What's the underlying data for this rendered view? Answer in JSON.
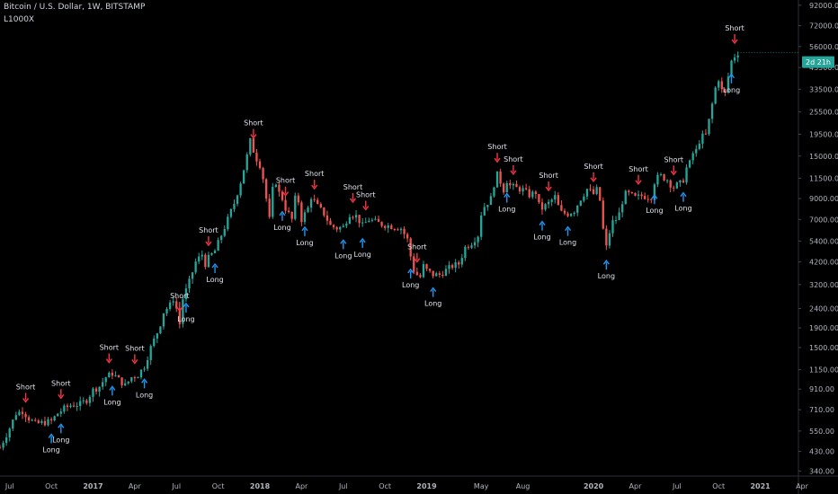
{
  "header": {
    "symbol": "Bitcoin / U.S. Dollar, 1W, BITSTAMP",
    "indicator": "L1000X"
  },
  "price_badge": {
    "label": "2d 21h",
    "color": "#26a69a"
  },
  "colors": {
    "up": "#26a69a",
    "down": "#ef5350",
    "long_arrow": "#2196f3",
    "short_arrow": "#f23645"
  },
  "chart_data": {
    "type": "candlestick",
    "title": "Bitcoin / U.S. Dollar, 1W, BITSTAMP",
    "y_scale": "log",
    "ylim": [
      320,
      98000
    ],
    "y_ticks": [
      "92000.00",
      "72000.00",
      "56000.00",
      "43500.00",
      "33500.00",
      "25500.00",
      "19500.00",
      "15000.00",
      "11500.00",
      "9000.00",
      "7000.00",
      "5400.00",
      "4200.00",
      "3200.00",
      "2400.00",
      "1900.00",
      "1500.00",
      "1150.00",
      "910.00",
      "710.00",
      "550.00",
      "430.00",
      "340.00"
    ],
    "x_ticks": [
      {
        "t": 0,
        "label": "Jul"
      },
      {
        "t": 13,
        "label": "Oct"
      },
      {
        "t": 26,
        "label": "2017"
      },
      {
        "t": 39,
        "label": "Apr"
      },
      {
        "t": 52,
        "label": "Jul"
      },
      {
        "t": 65,
        "label": "Oct"
      },
      {
        "t": 78,
        "label": "2018"
      },
      {
        "t": 91,
        "label": "Apr"
      },
      {
        "t": 104,
        "label": "Jul"
      },
      {
        "t": 117,
        "label": "Oct"
      },
      {
        "t": 130,
        "label": "2019"
      },
      {
        "t": 147,
        "label": "May"
      },
      {
        "t": 160,
        "label": "Aug"
      },
      {
        "t": 182,
        "label": "2020"
      },
      {
        "t": 195,
        "label": "Apr"
      },
      {
        "t": 208,
        "label": "Jul"
      },
      {
        "t": 221,
        "label": "Oct"
      },
      {
        "t": 234,
        "label": "2021"
      },
      {
        "t": 247,
        "label": "Apr"
      }
    ],
    "anchors": [
      [
        -3,
        450
      ],
      [
        0,
        570
      ],
      [
        2,
        680
      ],
      [
        4,
        700
      ],
      [
        6,
        640
      ],
      [
        8,
        600
      ],
      [
        11,
        610
      ],
      [
        13,
        620
      ],
      [
        15,
        680
      ],
      [
        17,
        720
      ],
      [
        19,
        750
      ],
      [
        22,
        760
      ],
      [
        24,
        800
      ],
      [
        26,
        900
      ],
      [
        28,
        940
      ],
      [
        30,
        1050
      ],
      [
        32,
        1100
      ],
      [
        34,
        1020
      ],
      [
        36,
        950
      ],
      [
        38,
        1050
      ],
      [
        40,
        1080
      ],
      [
        42,
        1200
      ],
      [
        44,
        1500
      ],
      [
        46,
        1800
      ],
      [
        47,
        2000
      ],
      [
        48,
        2300
      ],
      [
        50,
        2500
      ],
      [
        51,
        2700
      ],
      [
        52,
        2400
      ],
      [
        53,
        2000
      ],
      [
        54,
        2700
      ],
      [
        56,
        3300
      ],
      [
        58,
        4200
      ],
      [
        60,
        4600
      ],
      [
        61,
        4100
      ],
      [
        62,
        4400
      ],
      [
        64,
        4800
      ],
      [
        66,
        5800
      ],
      [
        68,
        7000
      ],
      [
        70,
        8500
      ],
      [
        72,
        11000
      ],
      [
        74,
        15000
      ],
      [
        75,
        18000
      ],
      [
        76,
        16000
      ],
      [
        77,
        14500
      ],
      [
        78,
        13500
      ],
      [
        79,
        11500
      ],
      [
        80,
        9000
      ],
      [
        81,
        7000
      ],
      [
        82,
        10000
      ],
      [
        83,
        11000
      ],
      [
        84,
        9600
      ],
      [
        85,
        9000
      ],
      [
        86,
        8000
      ],
      [
        88,
        7000
      ],
      [
        89,
        9000
      ],
      [
        90,
        8700
      ],
      [
        91,
        7000
      ],
      [
        93,
        8000
      ],
      [
        94,
        9200
      ],
      [
        96,
        8200
      ],
      [
        98,
        7500
      ],
      [
        100,
        6500
      ],
      [
        102,
        6300
      ],
      [
        104,
        6400
      ],
      [
        106,
        7500
      ],
      [
        108,
        7300
      ],
      [
        110,
        6500
      ],
      [
        112,
        7000
      ],
      [
        114,
        6800
      ],
      [
        116,
        6600
      ],
      [
        118,
        6500
      ],
      [
        120,
        6400
      ],
      [
        122,
        6300
      ],
      [
        124,
        5500
      ],
      [
        125,
        4500
      ],
      [
        126,
        3800
      ],
      [
        127,
        3600
      ],
      [
        128,
        3500
      ],
      [
        129,
        4000
      ],
      [
        130,
        3800
      ],
      [
        132,
        3600
      ],
      [
        134,
        3600
      ],
      [
        136,
        3800
      ],
      [
        138,
        4000
      ],
      [
        140,
        4100
      ],
      [
        142,
        5000
      ],
      [
        144,
        5300
      ],
      [
        146,
        5800
      ],
      [
        147,
        7500
      ],
      [
        148,
        8200
      ],
      [
        150,
        9000
      ],
      [
        151,
        10700
      ],
      [
        152,
        12000
      ],
      [
        153,
        11000
      ],
      [
        154,
        10000
      ],
      [
        155,
        11200
      ],
      [
        156,
        10500
      ],
      [
        158,
        10200
      ],
      [
        160,
        10000
      ],
      [
        162,
        9400
      ],
      [
        164,
        9700
      ],
      [
        165,
        8300
      ],
      [
        166,
        8000
      ],
      [
        168,
        8500
      ],
      [
        170,
        9200
      ],
      [
        171,
        8200
      ],
      [
        172,
        7600
      ],
      [
        174,
        7500
      ],
      [
        176,
        7800
      ],
      [
        178,
        9000
      ],
      [
        180,
        10100
      ],
      [
        182,
        9500
      ],
      [
        183,
        10000
      ],
      [
        184,
        8800
      ],
      [
        185,
        6200
      ],
      [
        186,
        5000
      ],
      [
        187,
        6000
      ],
      [
        188,
        6800
      ],
      [
        189,
        7000
      ],
      [
        190,
        7500
      ],
      [
        191,
        8700
      ],
      [
        192,
        9500
      ],
      [
        193,
        9500
      ],
      [
        195,
        9100
      ],
      [
        197,
        9300
      ],
      [
        199,
        9200
      ],
      [
        200,
        9200
      ],
      [
        201,
        11000
      ],
      [
        202,
        11600
      ],
      [
        203,
        11800
      ],
      [
        205,
        11300
      ],
      [
        206,
        10700
      ],
      [
        207,
        10300
      ],
      [
        208,
        10600
      ],
      [
        209,
        10800
      ],
      [
        210,
        11300
      ],
      [
        211,
        13000
      ],
      [
        212,
        13800
      ],
      [
        213,
        15500
      ],
      [
        214,
        16000
      ],
      [
        215,
        18000
      ],
      [
        216,
        19000
      ],
      [
        217,
        19300
      ],
      [
        218,
        23000
      ],
      [
        219,
        28000
      ],
      [
        220,
        34000
      ],
      [
        221,
        38000
      ],
      [
        222,
        33000
      ],
      [
        223,
        32000
      ],
      [
        224,
        39000
      ],
      [
        225,
        47000
      ],
      [
        226,
        50000
      ],
      [
        227,
        52000
      ]
    ],
    "signals": [
      {
        "type": "Short",
        "t": 5
      },
      {
        "type": "Long",
        "t": 13
      },
      {
        "type": "Long",
        "t": 16
      },
      {
        "type": "Short",
        "t": 16
      },
      {
        "type": "Long",
        "t": 32
      },
      {
        "type": "Short",
        "t": 31
      },
      {
        "type": "Short",
        "t": 39
      },
      {
        "type": "Long",
        "t": 42
      },
      {
        "type": "Short",
        "t": 53
      },
      {
        "type": "Long",
        "t": 55
      },
      {
        "type": "Short",
        "t": 62
      },
      {
        "type": "Long",
        "t": 64
      },
      {
        "type": "Short",
        "t": 76
      },
      {
        "type": "Long",
        "t": 85
      },
      {
        "type": "Short",
        "t": 86
      },
      {
        "type": "Long",
        "t": 92
      },
      {
        "type": "Short",
        "t": 95
      },
      {
        "type": "Long",
        "t": 104
      },
      {
        "type": "Short",
        "t": 107
      },
      {
        "type": "Short",
        "t": 111
      },
      {
        "type": "Long",
        "t": 110
      },
      {
        "type": "Short",
        "t": 127
      },
      {
        "type": "Long",
        "t": 125
      },
      {
        "type": "Long",
        "t": 132
      },
      {
        "type": "Short",
        "t": 152
      },
      {
        "type": "Short",
        "t": 157
      },
      {
        "type": "Long",
        "t": 155
      },
      {
        "type": "Long",
        "t": 166
      },
      {
        "type": "Short",
        "t": 168
      },
      {
        "type": "Long",
        "t": 174
      },
      {
        "type": "Short",
        "t": 182
      },
      {
        "type": "Long",
        "t": 186
      },
      {
        "type": "Short",
        "t": 196
      },
      {
        "type": "Long",
        "t": 201
      },
      {
        "type": "Short",
        "t": 207
      },
      {
        "type": "Long",
        "t": 210
      },
      {
        "type": "Short",
        "t": 226
      },
      {
        "type": "Long",
        "t": 225
      }
    ]
  }
}
